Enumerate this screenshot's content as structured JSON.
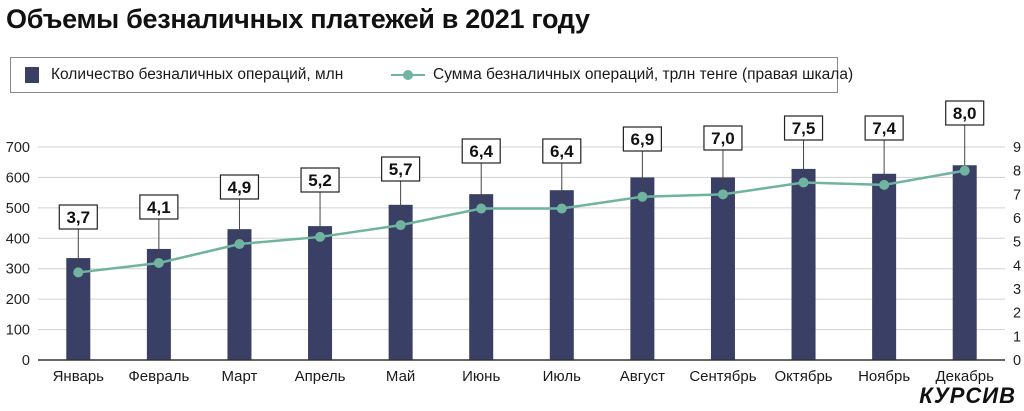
{
  "title": "Объемы безналичных платежей в 2021 году",
  "brand": "КУРСИВ",
  "colors": {
    "bar": "#3a3f66",
    "line": "#6fb3a0",
    "axis": "#333333",
    "grid": "#d0d0d0",
    "label_border": "#222222"
  },
  "legend": {
    "bars_label": "Количество безналичных операций, млн",
    "line_label": "Сумма безналичных операций, трлн тенге (правая шкала)"
  },
  "chart_data": {
    "type": "bar",
    "title": "Объемы безналичных платежей в 2021 году",
    "categories": [
      "Январь",
      "Февраль",
      "Март",
      "Апрель",
      "Май",
      "Июнь",
      "Июль",
      "Август",
      "Сентябрь",
      "Октябрь",
      "Ноябрь",
      "Декабрь"
    ],
    "series": [
      {
        "name": "Количество безналичных операций, млн",
        "type": "bar",
        "axis": "left",
        "values": [
          335,
          365,
          430,
          440,
          510,
          545,
          558,
          600,
          600,
          628,
          612,
          640
        ]
      },
      {
        "name": "Сумма безналичных операций, трлн тенге (правая шкала)",
        "type": "line",
        "axis": "right",
        "values": [
          3.7,
          4.1,
          4.9,
          5.2,
          5.7,
          6.4,
          6.4,
          6.9,
          7.0,
          7.5,
          7.4,
          8.0
        ],
        "labels": [
          "3,7",
          "4,1",
          "4,9",
          "5,2",
          "5,7",
          "6,4",
          "6,4",
          "6,9",
          "7,0",
          "7,5",
          "7,4",
          "8,0"
        ]
      }
    ],
    "y_left": {
      "min": 0,
      "max": 700,
      "ticks": [
        0,
        100,
        200,
        300,
        400,
        500,
        600,
        700
      ]
    },
    "y_right": {
      "min": 0,
      "max": 9,
      "ticks": [
        0,
        1,
        2,
        3,
        4,
        5,
        6,
        7,
        8,
        9
      ]
    },
    "grid": true,
    "legend_position": "top"
  }
}
